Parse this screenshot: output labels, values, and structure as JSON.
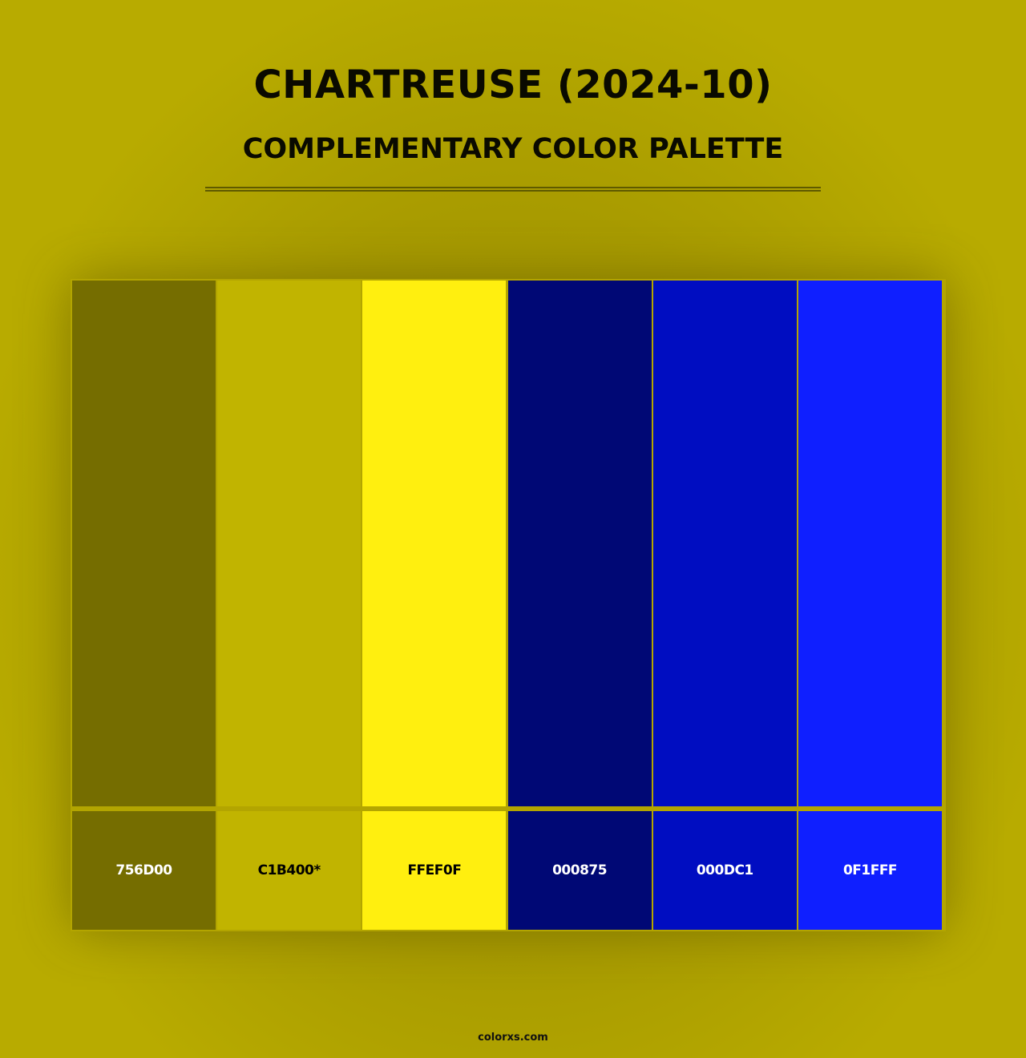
{
  "header": {
    "title": "CHARTREUSE (2024-10)",
    "subtitle": "COMPLEMENTARY COLOR PALETTE"
  },
  "palette": [
    {
      "hex": "756D00",
      "color": "#756D00",
      "text_color": "#ffffff"
    },
    {
      "hex": "C1B400*",
      "color": "#C1B400",
      "text_color": "#000000"
    },
    {
      "hex": "FFEF0F",
      "color": "#FFEF0F",
      "text_color": "#000000"
    },
    {
      "hex": "000875",
      "color": "#000875",
      "text_color": "#ffffff"
    },
    {
      "hex": "000DC1",
      "color": "#000DC1",
      "text_color": "#ffffff"
    },
    {
      "hex": "0F1FFF",
      "color": "#0F1FFF",
      "text_color": "#ffffff"
    }
  ],
  "footer": {
    "site": "colorxs.com"
  }
}
